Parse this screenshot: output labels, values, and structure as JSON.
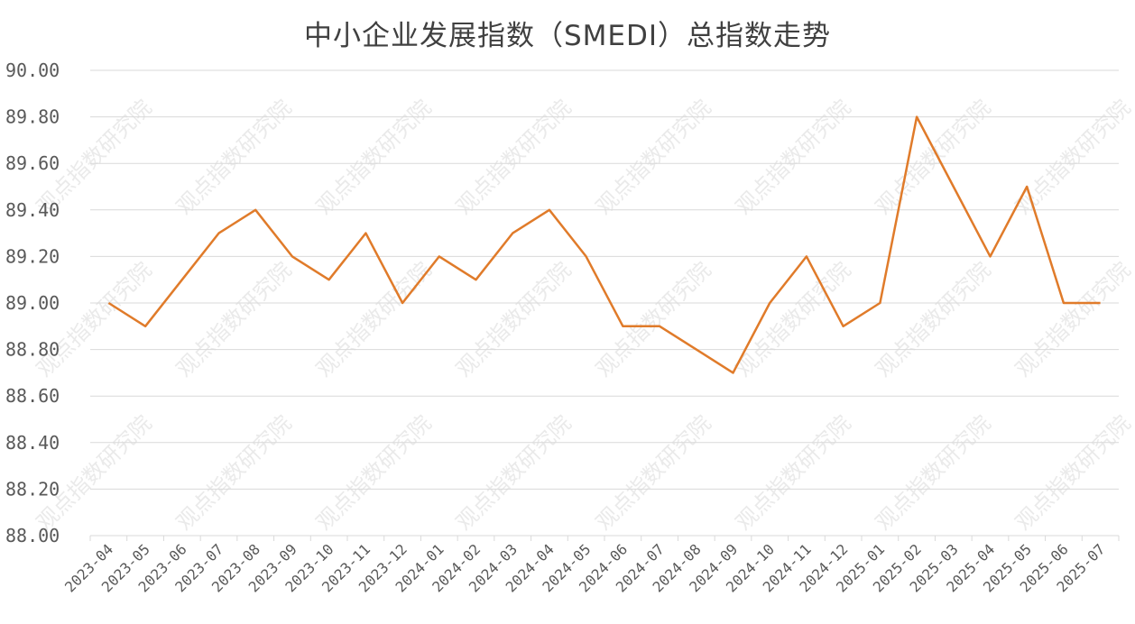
{
  "chart_data": {
    "type": "line",
    "title": "中小企业发展指数（SMEDI）总指数走势",
    "xlabel": "",
    "ylabel": "",
    "ylim": [
      88.0,
      90.0
    ],
    "yticks": [
      "88.00",
      "88.20",
      "88.40",
      "88.60",
      "88.80",
      "89.00",
      "89.20",
      "89.40",
      "89.60",
      "89.80",
      "90.00"
    ],
    "grid": true,
    "legend": "none",
    "line_color": "#E07B2A",
    "watermark": "观点指数研究院",
    "categories": [
      "2023-04",
      "2023-05",
      "2023-06",
      "2023-07",
      "2023-08",
      "2023-09",
      "2023-10",
      "2023-11",
      "2023-12",
      "2024-01",
      "2024-02",
      "2024-03",
      "2024-04",
      "2024-05",
      "2024-06",
      "2024-07",
      "2024-08",
      "2024-09",
      "2024-10",
      "2024-11",
      "2024-12",
      "2025-01",
      "2025-02",
      "2025-03",
      "2025-04",
      "2025-05",
      "2025-06",
      "2025-07"
    ],
    "values": [
      89.0,
      88.9,
      89.1,
      89.3,
      89.4,
      89.2,
      89.1,
      89.3,
      89.0,
      89.2,
      89.1,
      89.3,
      89.4,
      89.2,
      88.9,
      88.9,
      88.8,
      88.7,
      89.0,
      89.2,
      88.9,
      89.0,
      89.8,
      89.5,
      89.2,
      89.5,
      89.0,
      89.0
    ]
  }
}
